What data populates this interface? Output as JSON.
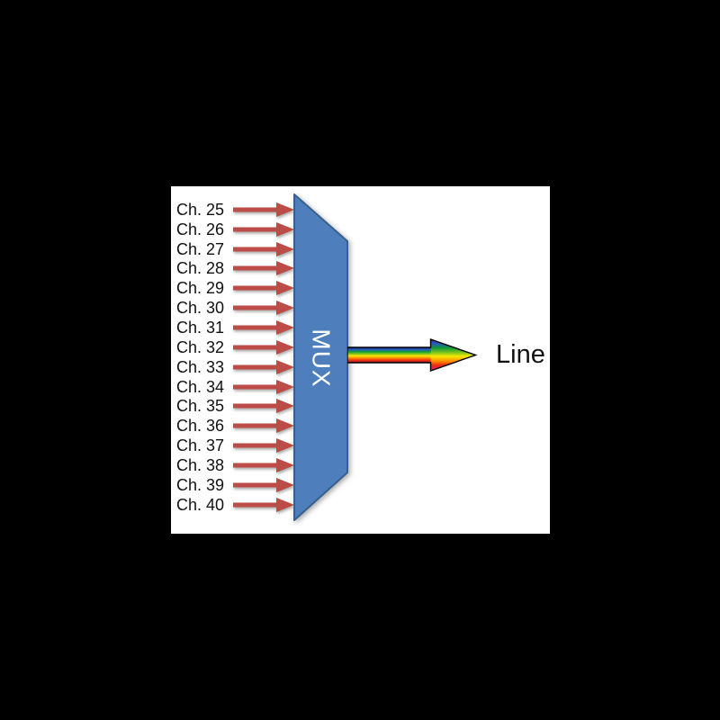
{
  "diagram": {
    "title": "optical-mux-diagram",
    "channels": [
      "Ch. 25",
      "Ch. 26",
      "Ch. 27",
      "Ch. 28",
      "Ch. 29",
      "Ch. 30",
      "Ch. 31",
      "Ch. 32",
      "Ch. 33",
      "Ch. 34",
      "Ch. 35",
      "Ch. 36",
      "Ch. 37",
      "Ch. 38",
      "Ch. 39",
      "Ch. 40"
    ],
    "mux": {
      "label": "MUX",
      "fill": "#4E7FBC",
      "border": "#36618E",
      "text_color": "#FFFFFF"
    },
    "output_label": "Line",
    "colors": {
      "background": "#000000",
      "panel": "#FFFFFF",
      "channel_arrow": "#BD4B47",
      "label_text": "#111111",
      "outline": "#000000"
    },
    "gradients": {
      "rainbow_body": [
        [
          "0",
          "#1E2583"
        ],
        [
          "0.13",
          "#2B56C6"
        ],
        [
          "0.28",
          "#0E9C38"
        ],
        [
          "0.42",
          "#7DC41E"
        ],
        [
          "0.54",
          "#F5EA00"
        ],
        [
          "0.68",
          "#FF9700"
        ],
        [
          "0.83",
          "#EF3311"
        ],
        [
          "1",
          "#9C1331"
        ]
      ],
      "rainbow_head": [
        [
          "0",
          "#31309F"
        ],
        [
          "0.13",
          "#2B56C6"
        ],
        [
          "0.28",
          "#0E9C38"
        ],
        [
          "0.42",
          "#7DC41E"
        ],
        [
          "0.54",
          "#F5EA00"
        ],
        [
          "0.68",
          "#FF9700"
        ],
        [
          "0.82",
          "#EE2D12"
        ],
        [
          "1",
          "#DE1680"
        ]
      ]
    }
  }
}
